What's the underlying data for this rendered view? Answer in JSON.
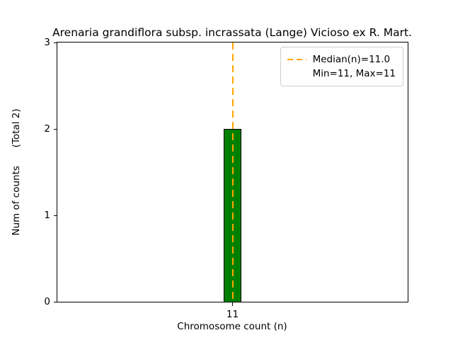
{
  "chart_data": {
    "type": "bar",
    "title": "Arenaria grandiflora subsp. incrassata (Lange) Vicioso ex R. Mart.",
    "xlabel": "Chromosome count (n)",
    "ylabel": "Num of counts      (Total 2)",
    "categories": [
      11
    ],
    "values": [
      2
    ],
    "total": 2,
    "xlim": [
      10.5,
      11.5
    ],
    "ylim": [
      0,
      3
    ],
    "yticks": [
      0,
      1,
      2,
      3
    ],
    "xticks": [
      11
    ],
    "bar_width_units": 0.05,
    "bar_color": "#008000",
    "bar_edge_color": "#000000",
    "grid": false,
    "median_line": {
      "x": 11,
      "value": 11.0,
      "color": "#FFA500",
      "style": "dashed"
    },
    "legend": {
      "position": "upper right",
      "entries": [
        {
          "label": "Median(n)=11.0",
          "line_color": "#FFA500",
          "line_style": "dashed"
        },
        {
          "label": "Min=11, Max=11",
          "line_color": null,
          "line_style": null
        }
      ]
    }
  }
}
